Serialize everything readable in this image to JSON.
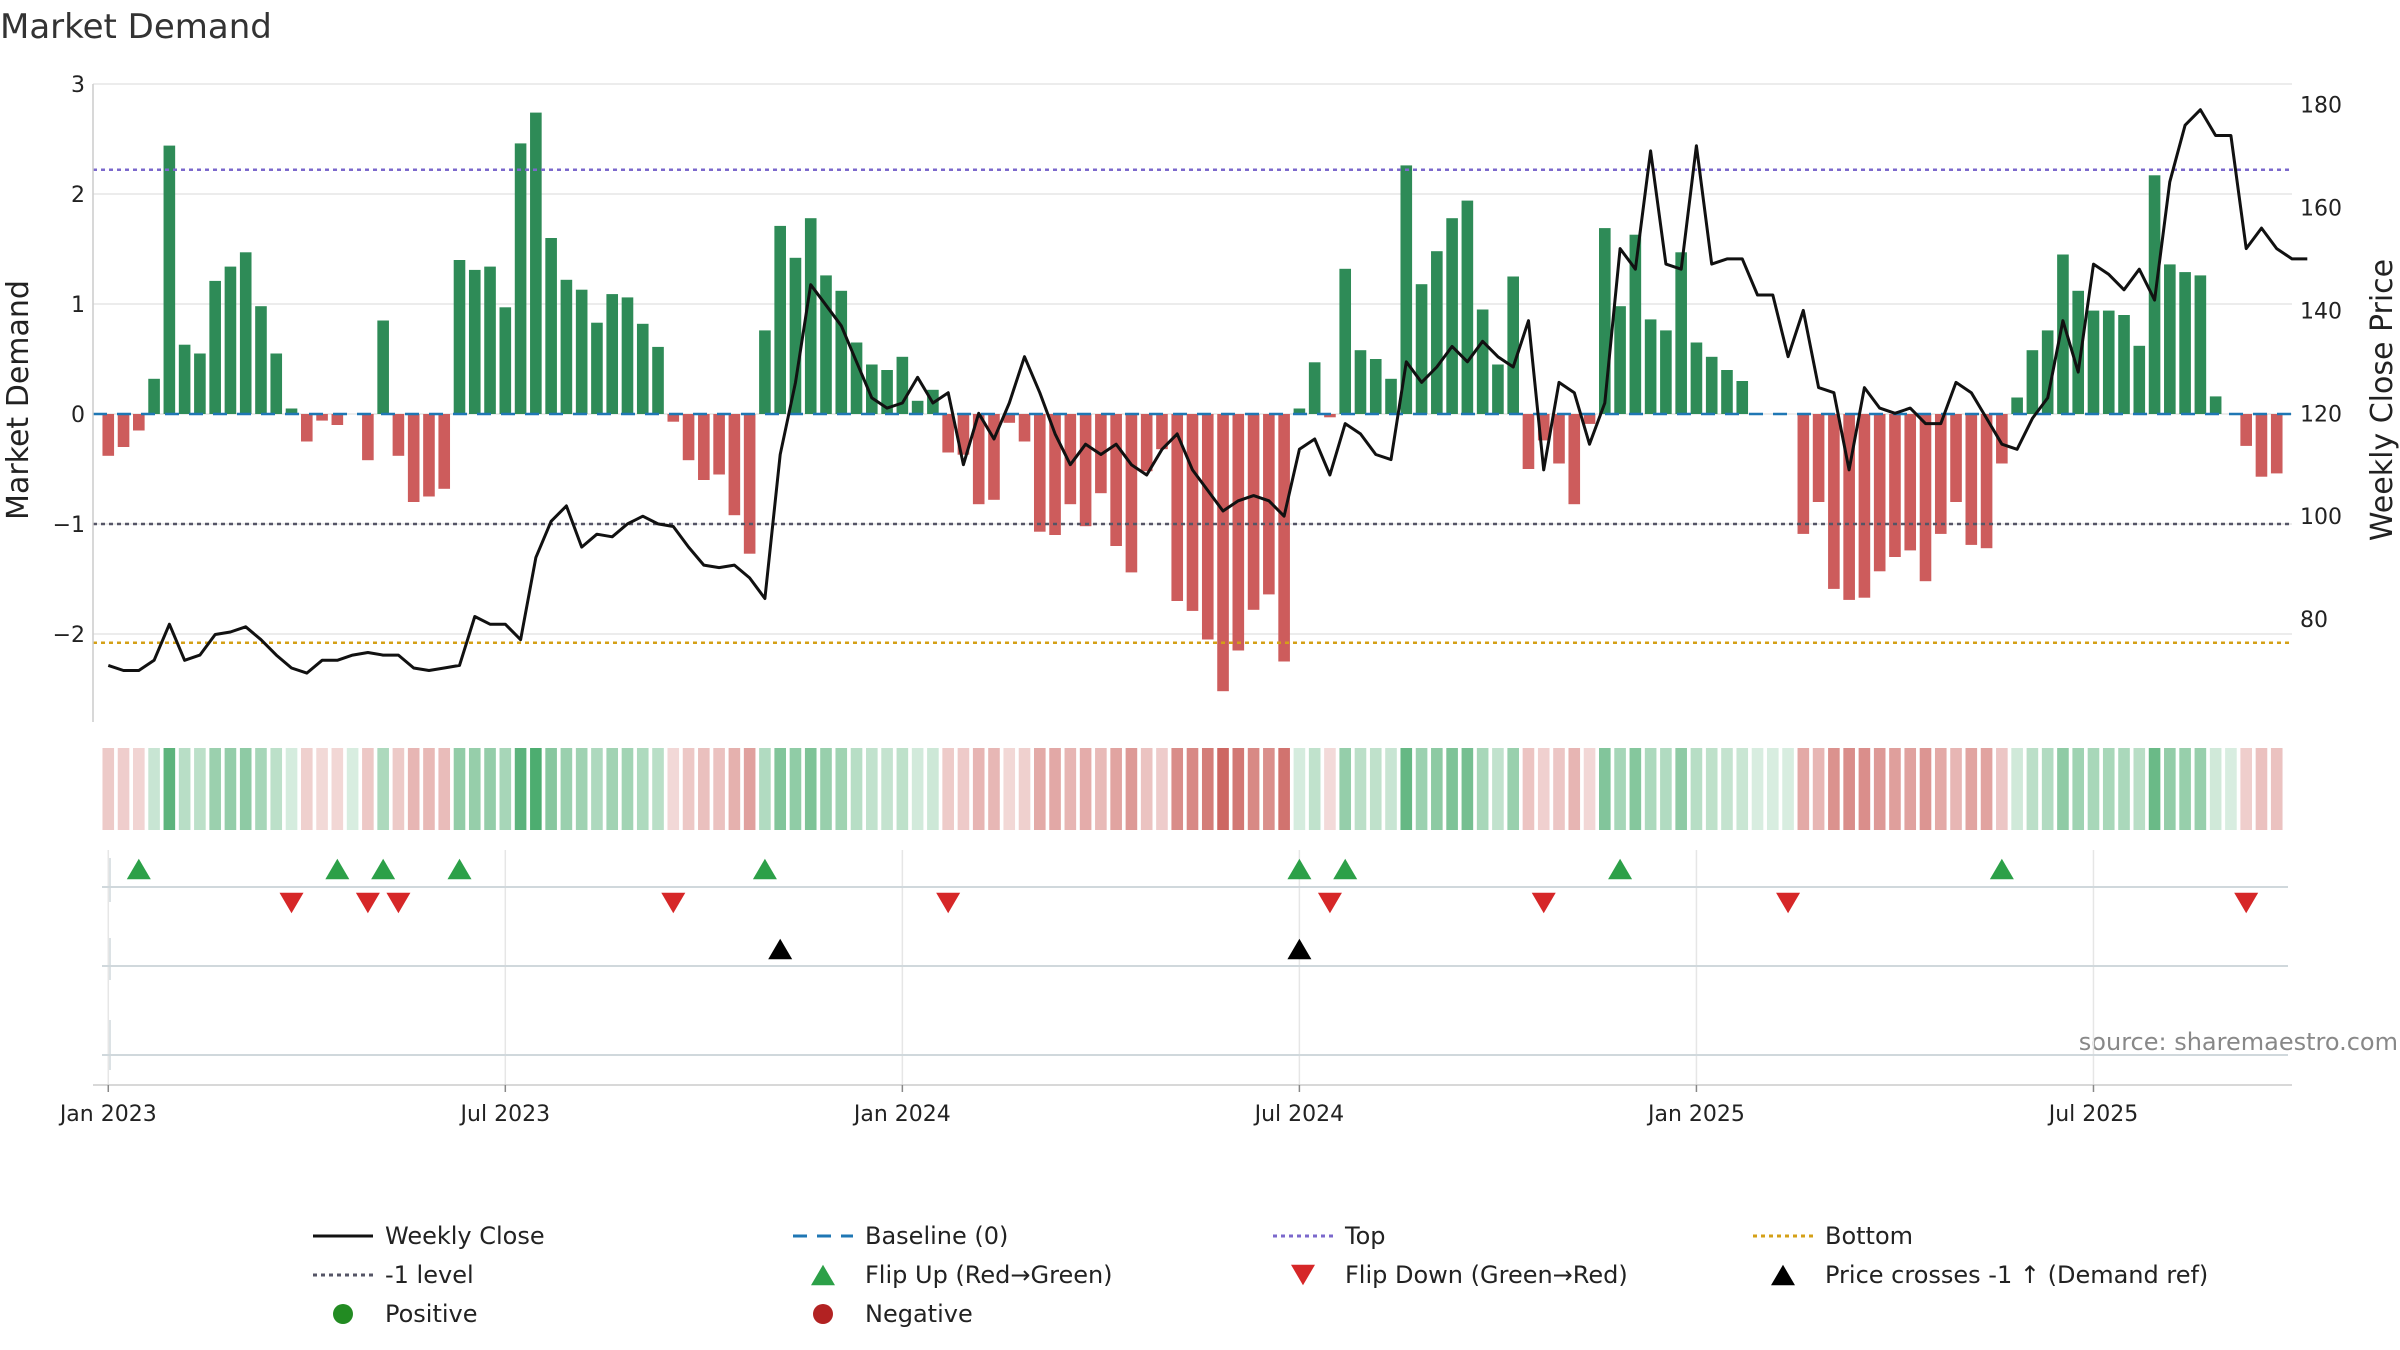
{
  "chart_data": {
    "type": "bar",
    "title": "Market Demand",
    "ylabel": "Market Demand",
    "y2label": "Weekly Close Price",
    "ylim": [
      -2.8,
      3.0
    ],
    "y2lim": [
      60,
      184
    ],
    "left_ticks": [
      "3",
      "2",
      "1",
      "0",
      "−1",
      "−2"
    ],
    "right_ticks": [
      "180",
      "160",
      "140",
      "120",
      "100",
      "80"
    ],
    "x_ticks": [
      {
        "label": "Jan 2023",
        "week": 0
      },
      {
        "label": "Jul 2023",
        "week": 26
      },
      {
        "label": "Jan 2024",
        "week": 52
      },
      {
        "label": "Jul 2024",
        "week": 78
      },
      {
        "label": "Jan 2025",
        "week": 104
      },
      {
        "label": "Jul 2025",
        "week": 130
      }
    ],
    "week_min": -1,
    "week_max": 143,
    "levels": {
      "top": 2.22,
      "bottom": -2.08,
      "minus_one": -1,
      "baseline": 0
    },
    "colors": {
      "positive": "#2e8b57",
      "negative": "#cd5c5c",
      "top_line": "#7b68cc",
      "bottom_line": "#d4a017",
      "minus_one_line": "#555566",
      "baseline": "#1f77b4",
      "price": "#111111",
      "flip_up": "#2ca048",
      "flip_down": "#d62728",
      "cross": "#000000",
      "strip_pos": "#2e9e57",
      "strip_neg": "#c0403a"
    },
    "demand": [
      -0.38,
      -0.3,
      -0.15,
      0.32,
      2.44,
      0.63,
      0.55,
      1.21,
      1.34,
      1.47,
      0.98,
      0.55,
      0.05,
      -0.25,
      -0.06,
      -0.1,
      0,
      -0.42,
      0.85,
      -0.38,
      -0.8,
      -0.75,
      -0.68,
      1.4,
      1.31,
      1.34,
      0.97,
      2.46,
      2.74,
      1.6,
      1.22,
      1.13,
      0.83,
      1.09,
      1.06,
      0.82,
      0.61,
      -0.07,
      -0.42,
      -0.6,
      -0.55,
      -0.92,
      -1.27,
      0.76,
      1.71,
      1.42,
      1.78,
      1.26,
      1.12,
      0.65,
      0.45,
      0.4,
      0.52,
      0.12,
      0.22,
      -0.35,
      -0.37,
      -0.82,
      -0.78,
      -0.08,
      -0.25,
      -1.07,
      -1.1,
      -0.82,
      -1.02,
      -0.72,
      -1.2,
      -1.44,
      -0.52,
      -0.32,
      -1.7,
      -1.79,
      -2.05,
      -2.52,
      -2.15,
      -1.78,
      -1.64,
      -2.25,
      0.05,
      0.47,
      -0.03,
      1.32,
      0.58,
      0.5,
      0.32,
      2.26,
      1.18,
      1.48,
      1.78,
      1.94,
      0.95,
      0.45,
      1.25,
      -0.5,
      -0.24,
      -0.45,
      -0.82,
      -0.09,
      1.69,
      0.98,
      1.63,
      0.86,
      0.76,
      1.47,
      0.65,
      0.52,
      0.4,
      0.3,
      0,
      0,
      0,
      -1.09,
      -0.8,
      -1.59,
      -1.69,
      -1.67,
      -1.43,
      -1.3,
      -1.24,
      -1.52,
      -1.09,
      -0.8,
      -1.19,
      -1.22,
      -0.45,
      0.15,
      0.58,
      0.76,
      1.45,
      1.12,
      0.94,
      0.94,
      0.9,
      0.62,
      2.17,
      1.36,
      1.29,
      1.26,
      0.16,
      0,
      -0.29,
      -0.57,
      -0.54
    ],
    "price": [
      71,
      70,
      70,
      72,
      79,
      72,
      73,
      77,
      77.5,
      78.5,
      76,
      73,
      70.5,
      69.5,
      72,
      72,
      73,
      73.5,
      73,
      73,
      70.5,
      70,
      70.5,
      71,
      80.5,
      79,
      79,
      76,
      92,
      99,
      102,
      94,
      96.5,
      96,
      98.5,
      100,
      98.5,
      98,
      94,
      90.5,
      90,
      90.5,
      88,
      84,
      112,
      126,
      145,
      141,
      137,
      130,
      123,
      121,
      122,
      127,
      122,
      124,
      110,
      120,
      115,
      122,
      131,
      124,
      116,
      110,
      114,
      112,
      114,
      110,
      108,
      113,
      116,
      109,
      105,
      101,
      103,
      104,
      103,
      100,
      113,
      115,
      108,
      118,
      116,
      112,
      111,
      130,
      126,
      129,
      133,
      130,
      134,
      131,
      129,
      138,
      109,
      126,
      124,
      114,
      122,
      152,
      148,
      171,
      149,
      148,
      172,
      149,
      150,
      150,
      143,
      143,
      131,
      140,
      125,
      124,
      109,
      125,
      121,
      120,
      121,
      118,
      118,
      126,
      124,
      119,
      114,
      113,
      119,
      123,
      138,
      128,
      149,
      147,
      144,
      148,
      142,
      165,
      176,
      179,
      174,
      174,
      152,
      156,
      152,
      150,
      150
    ],
    "flip_up": [
      2,
      15,
      18,
      23,
      43,
      78,
      81,
      99,
      124
    ],
    "flip_down": [
      12,
      17,
      19,
      37,
      55,
      80,
      94,
      110,
      140
    ],
    "cross_up": [
      44,
      78
    ],
    "source": "source: sharemaestro.com",
    "legend": [
      {
        "label": "Weekly Close",
        "kind": "line",
        "color": "#111111",
        "dash": ""
      },
      {
        "label": "Baseline (0)",
        "kind": "line",
        "color": "#1f77b4",
        "dash": "14,10"
      },
      {
        "label": "Top",
        "kind": "line",
        "color": "#7b68cc",
        "dash": "4,4"
      },
      {
        "label": "Bottom",
        "kind": "line",
        "color": "#d4a017",
        "dash": "4,4"
      },
      {
        "label": "-1 level",
        "kind": "line",
        "color": "#555566",
        "dash": "4,4"
      },
      {
        "label": "Flip Up (Red→Green)",
        "kind": "tri-up",
        "color": "#2ca048",
        "dash": ""
      },
      {
        "label": "Flip Down (Green→Red)",
        "kind": "tri-down",
        "color": "#d62728",
        "dash": ""
      },
      {
        "label": "Price crosses -1 ↑ (Demand ref)",
        "kind": "tri-up",
        "color": "#000000",
        "dash": ""
      },
      {
        "label": "Positive",
        "kind": "dot",
        "color": "#228b22",
        "dash": ""
      },
      {
        "label": "Negative",
        "kind": "dot",
        "color": "#b22222",
        "dash": ""
      }
    ]
  }
}
